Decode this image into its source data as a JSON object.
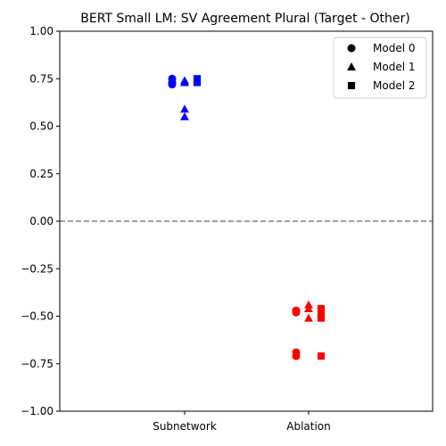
{
  "chart_data": {
    "type": "scatter",
    "title": "BERT Small LM: SV Agreement Plural (Target - Other)",
    "xlabel": "",
    "ylabel": "",
    "categories": [
      "Subnetwork",
      "Ablation"
    ],
    "ylim": [
      -1.0,
      1.0
    ],
    "yticks": [
      1.0,
      0.75,
      0.5,
      0.25,
      0.0,
      -0.25,
      -0.5,
      -0.75,
      -1.0
    ],
    "ytick_labels": [
      "1.00",
      "0.75",
      "0.50",
      "0.25",
      "0.00",
      "−0.25",
      "−0.50",
      "−0.75",
      "−1.00"
    ],
    "reference_line": {
      "y": 0.0,
      "style": "dashed",
      "color": "#808080"
    },
    "category_colors": {
      "Subnetwork": "#0000ff",
      "Ablation": "#ff0000"
    },
    "legend_position": "top-right",
    "series": [
      {
        "name": "Model 0",
        "marker": "circle",
        "values": {
          "Subnetwork": [
            0.75,
            0.73,
            0.72
          ],
          "Ablation": [
            -0.47,
            -0.48,
            -0.69,
            -0.71
          ]
        }
      },
      {
        "name": "Model 1",
        "marker": "triangle",
        "values": {
          "Subnetwork": [
            0.74,
            0.73,
            0.59,
            0.55
          ],
          "Ablation": [
            -0.44,
            -0.46,
            -0.51
          ]
        }
      },
      {
        "name": "Model 2",
        "marker": "square",
        "values": {
          "Subnetwork": [
            0.75,
            0.74,
            0.73
          ],
          "Ablation": [
            -0.46,
            -0.48,
            -0.51,
            -0.71
          ]
        }
      }
    ]
  }
}
